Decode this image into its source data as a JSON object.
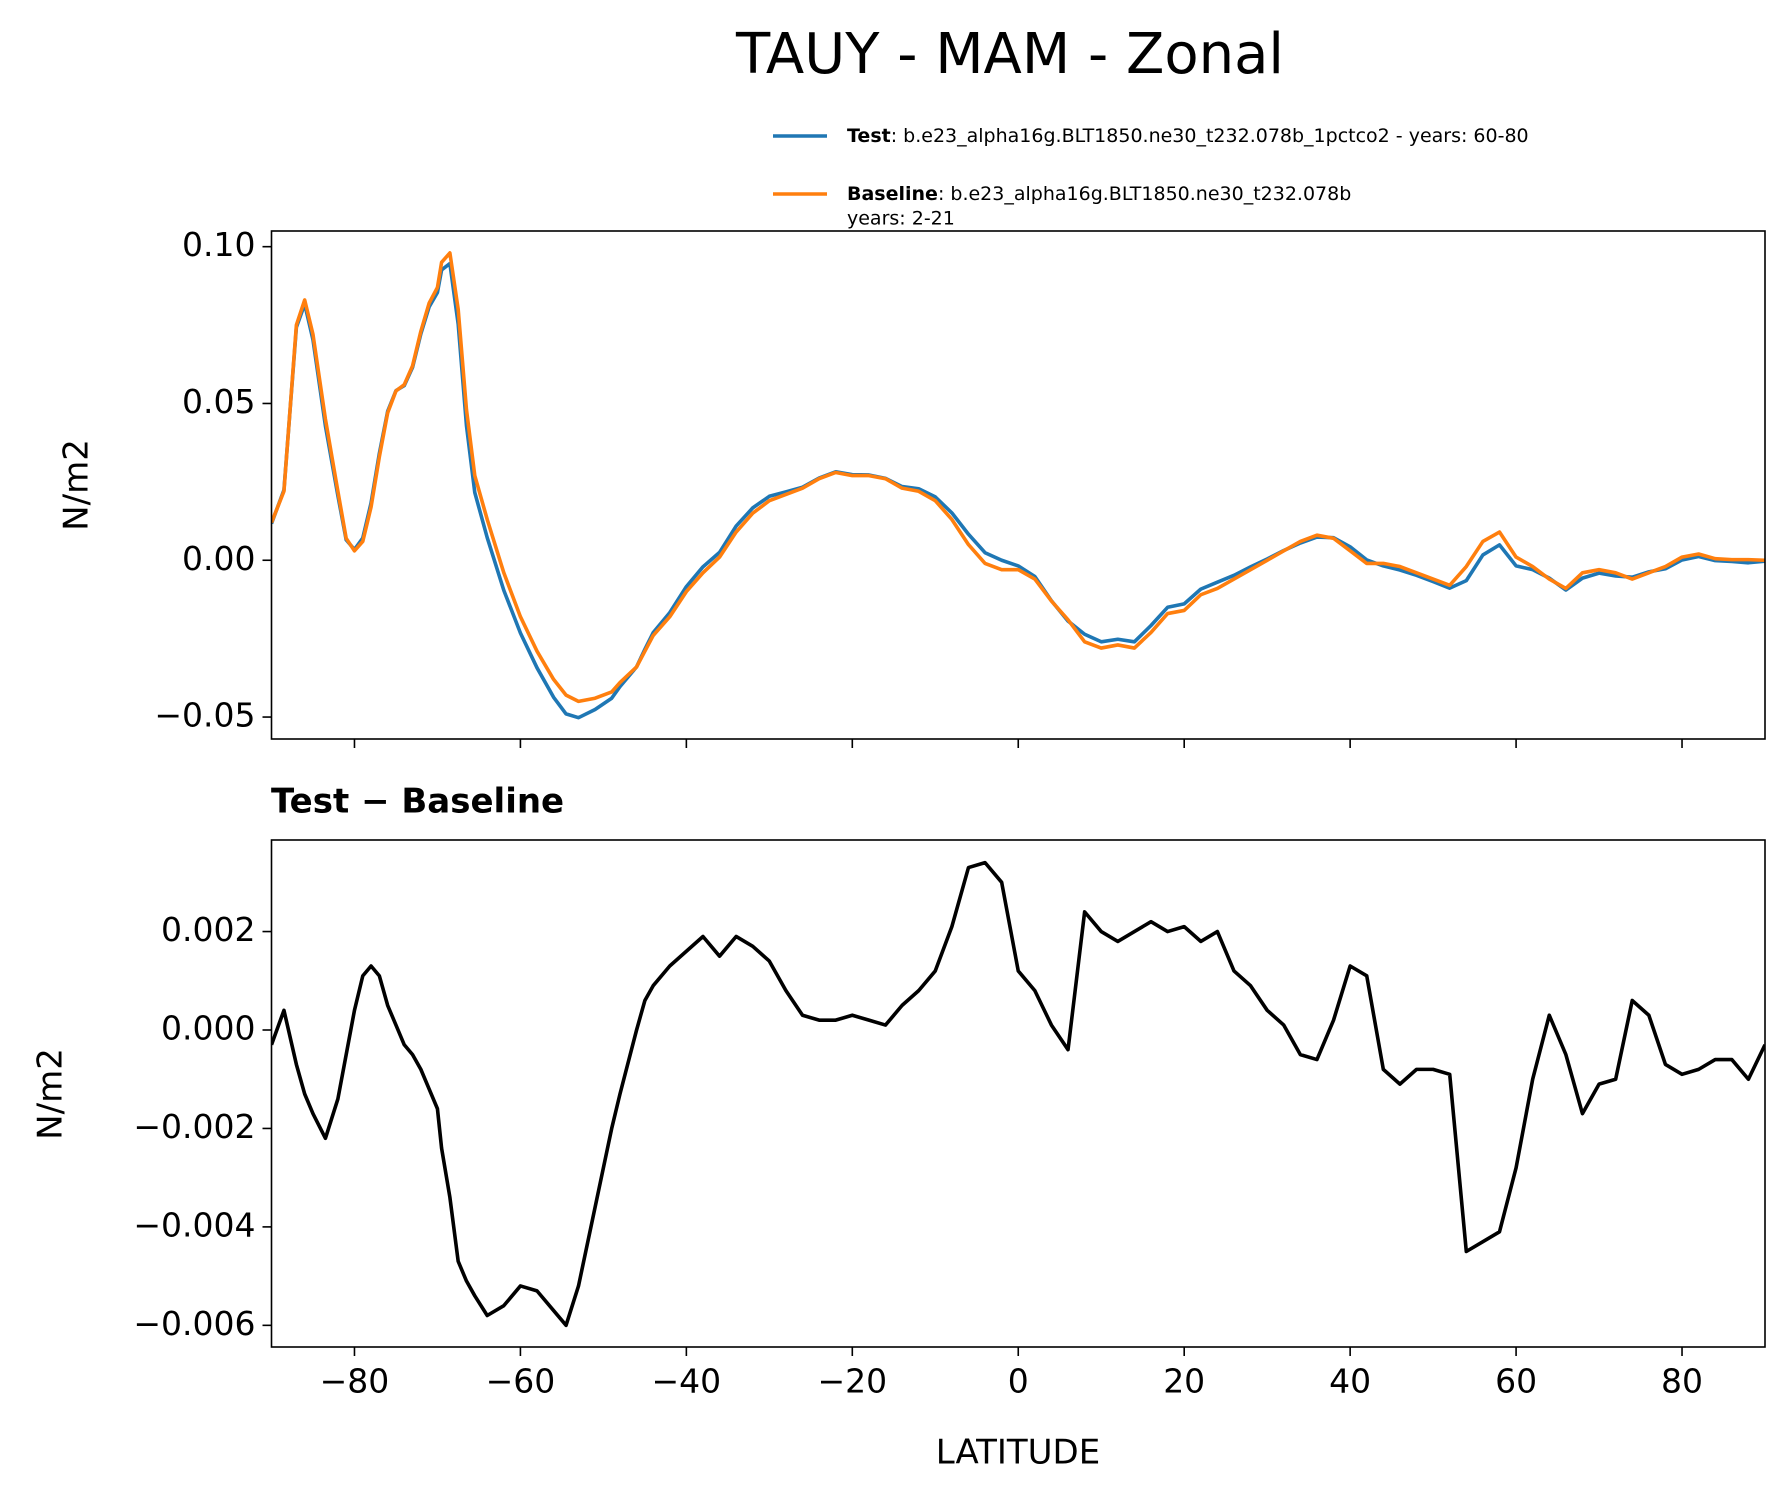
{
  "chart_data": [
    {
      "type": "line",
      "title": "TAUY - MAM - Zonal",
      "ylabel": "N/m2",
      "x": [
        -90,
        -88.5,
        -87,
        -86,
        -85,
        -83.5,
        -82,
        -81,
        -80,
        -79,
        -78,
        -77,
        -76,
        -75,
        -74,
        -73,
        -72,
        -71,
        -70,
        -69.5,
        -68.5,
        -67.5,
        -66.5,
        -65.5,
        -64,
        -62,
        -60,
        -58,
        -56,
        -54.5,
        -53,
        -51,
        -49,
        -48,
        -46,
        -45,
        -44,
        -42,
        -40,
        -38,
        -36,
        -34,
        -32,
        -30,
        -28,
        -26,
        -24,
        -22,
        -20,
        -18,
        -16,
        -14,
        -12,
        -10,
        -8,
        -6,
        -4,
        -2,
        0,
        2,
        4,
        6,
        8,
        10,
        12,
        14,
        16,
        18,
        20,
        22,
        24,
        26,
        28,
        30,
        32,
        34,
        36,
        38,
        40,
        42,
        44,
        46,
        48,
        50,
        52,
        54,
        56,
        58,
        60,
        62,
        64,
        66,
        68,
        70,
        72,
        74,
        76,
        78,
        80,
        82,
        84,
        86,
        88,
        90
      ],
      "series": [
        {
          "name": "Test",
          "description": [
            ": b.e23_alpha16g.BLT1850.ne30_t232.078b_1pctco2 - years: 60-80"
          ],
          "color": "#1f77b4",
          "values": [
            0.0117,
            0.0224,
            0.0743,
            0.0817,
            0.0703,
            0.0428,
            0.0206,
            0.0065,
            0.0034,
            0.0071,
            0.0183,
            0.0341,
            0.0475,
            0.0541,
            0.0557,
            0.0615,
            0.0722,
            0.0808,
            0.0854,
            0.0926,
            0.0946,
            0.0753,
            0.0429,
            0.0216,
            0.0072,
            -0.0096,
            -0.0232,
            -0.0343,
            -0.0437,
            -0.049,
            -0.0502,
            -0.0476,
            -0.044,
            -0.0403,
            -0.034,
            -0.0284,
            -0.0231,
            -0.0167,
            -0.0084,
            -0.0021,
            0.0025,
            0.0109,
            0.0167,
            0.0204,
            0.0218,
            0.0233,
            0.0262,
            0.0282,
            0.0273,
            0.0272,
            0.0261,
            0.0235,
            0.0228,
            0.0202,
            0.0151,
            0.0083,
            0.0024,
            0.0,
            -0.0018,
            -0.0052,
            -0.0129,
            -0.0194,
            -0.0236,
            -0.026,
            -0.0252,
            -0.026,
            -0.0208,
            -0.015,
            -0.0139,
            -0.0092,
            -0.007,
            -0.0048,
            -0.0021,
            0.0004,
            0.0031,
            0.0055,
            0.0074,
            0.0072,
            0.0043,
            0.0001,
            -0.0018,
            -0.0031,
            -0.0048,
            -0.0068,
            -0.0089,
            -0.0065,
            0.0017,
            0.0049,
            -0.0018,
            -0.003,
            -0.0057,
            -0.0095,
            -0.0057,
            -0.0041,
            -0.005,
            -0.0054,
            -0.0037,
            -0.0027,
            0.0001,
            0.0012,
            -0.0001,
            -0.0004,
            -0.0008,
            -0.0003
          ]
        },
        {
          "name": "Baseline",
          "description": [
            ": b.e23_alpha16g.BLT1850.ne30_t232.078b",
            "years: 2-21"
          ],
          "color": "#ff7f0e",
          "values": [
            0.012,
            0.022,
            0.075,
            0.083,
            0.072,
            0.045,
            0.022,
            0.007,
            0.003,
            0.006,
            0.017,
            0.033,
            0.047,
            0.054,
            0.056,
            0.062,
            0.073,
            0.082,
            0.087,
            0.095,
            0.098,
            0.08,
            0.048,
            0.027,
            0.013,
            -0.004,
            -0.018,
            -0.029,
            -0.038,
            -0.043,
            -0.045,
            -0.044,
            -0.042,
            -0.039,
            -0.034,
            -0.029,
            -0.024,
            -0.018,
            -0.01,
            -0.004,
            0.001,
            0.009,
            0.015,
            0.019,
            0.021,
            0.023,
            0.026,
            0.028,
            0.027,
            0.027,
            0.026,
            0.023,
            0.022,
            0.019,
            0.013,
            0.005,
            -0.001,
            -0.003,
            -0.003,
            -0.006,
            -0.013,
            -0.019,
            -0.026,
            -0.028,
            -0.027,
            -0.028,
            -0.023,
            -0.017,
            -0.016,
            -0.011,
            -0.009,
            -0.006,
            -0.003,
            0.0,
            0.003,
            0.006,
            0.008,
            0.007,
            0.003,
            -0.001,
            -0.001,
            -0.002,
            -0.004,
            -0.006,
            -0.008,
            -0.002,
            0.006,
            0.009,
            0.001,
            -0.002,
            -0.006,
            -0.009,
            -0.004,
            -0.003,
            -0.004,
            -0.006,
            -0.004,
            -0.002,
            0.001,
            0.002,
            0.0005,
            0.0002,
            0.0002,
            0.0
          ]
        }
      ],
      "xlim": [
        -90,
        90
      ],
      "xticks": [
        -80,
        -60,
        -40,
        -20,
        0,
        20,
        40,
        60,
        80
      ],
      "ylim": [
        -0.057,
        0.105
      ],
      "yticks": [
        {
          "value": -0.05,
          "label": "−0.05"
        },
        {
          "value": 0.0,
          "label": "0.00"
        },
        0.05,
        {
          "value": 0.1,
          "label": "0.10"
        }
      ]
    },
    {
      "type": "line",
      "title": "Test − Baseline",
      "xlabel": "LATITUDE",
      "ylabel": "N/m2",
      "x": [
        -90,
        -88.5,
        -87,
        -86,
        -85,
        -83.5,
        -82,
        -81,
        -80,
        -79,
        -78,
        -77,
        -76,
        -75,
        -74,
        -73,
        -72,
        -71,
        -70,
        -69.5,
        -68.5,
        -67.5,
        -66.5,
        -65.5,
        -64,
        -62,
        -60,
        -58,
        -56,
        -54.5,
        -53,
        -51,
        -49,
        -48,
        -46,
        -45,
        -44,
        -42,
        -40,
        -38,
        -36,
        -34,
        -32,
        -30,
        -28,
        -26,
        -24,
        -22,
        -20,
        -18,
        -16,
        -14,
        -12,
        -10,
        -8,
        -6,
        -4,
        -2,
        0,
        2,
        4,
        6,
        8,
        10,
        12,
        14,
        16,
        18,
        20,
        22,
        24,
        26,
        28,
        30,
        32,
        34,
        36,
        38,
        40,
        42,
        44,
        46,
        48,
        50,
        52,
        54,
        56,
        58,
        60,
        62,
        64,
        66,
        68,
        70,
        72,
        74,
        76,
        78,
        80,
        82,
        84,
        86,
        88,
        90
      ],
      "series": [
        {
          "color": "#000000",
          "values": [
            -0.0003,
            0.0004,
            -0.0007,
            -0.0013,
            -0.0017,
            -0.0022,
            -0.0014,
            -0.0005,
            0.0004,
            0.0011,
            0.0013,
            0.0011,
            0.0005,
            0.0001,
            -0.0003,
            -0.0005,
            -0.0008,
            -0.0012,
            -0.0016,
            -0.0024,
            -0.0034,
            -0.0047,
            -0.0051,
            -0.0054,
            -0.0058,
            -0.0056,
            -0.0052,
            -0.0053,
            -0.0057,
            -0.006,
            -0.0052,
            -0.0036,
            -0.002,
            -0.0013,
            0.0,
            0.0006,
            0.0009,
            0.0013,
            0.0016,
            0.0019,
            0.0015,
            0.0019,
            0.0017,
            0.0014,
            0.0008,
            0.0003,
            0.0002,
            0.0002,
            0.0003,
            0.0002,
            0.0001,
            0.0005,
            0.0008,
            0.0012,
            0.0021,
            0.0033,
            0.0034,
            0.003,
            0.0012,
            0.0008,
            0.0001,
            -0.0004,
            0.0024,
            0.002,
            0.0018,
            0.002,
            0.0022,
            0.002,
            0.0021,
            0.0018,
            0.002,
            0.0012,
            0.0009,
            0.0004,
            0.0001,
            -0.0005,
            -0.0006,
            0.0002,
            0.0013,
            0.0011,
            -0.0008,
            -0.0011,
            -0.0008,
            -0.0008,
            -0.0009,
            -0.0045,
            -0.0043,
            -0.0041,
            -0.0028,
            -0.001,
            0.0003,
            -0.0005,
            -0.0017,
            -0.0011,
            -0.001,
            0.0006,
            0.0003,
            -0.0007,
            -0.0009,
            -0.0008,
            -0.0006,
            -0.0006,
            -0.001,
            -0.0003
          ]
        }
      ],
      "xlim": [
        -90,
        90
      ],
      "xticks": [
        {
          "value": -80,
          "label": "−80"
        },
        {
          "value": -60,
          "label": "−60"
        },
        {
          "value": -40,
          "label": "−40"
        },
        {
          "value": -20,
          "label": "−20"
        },
        0,
        20,
        40,
        60,
        80
      ],
      "ylim": [
        -0.00644,
        0.00386
      ],
      "yticks": [
        {
          "value": -0.006,
          "label": "−0.006"
        },
        {
          "value": -0.004,
          "label": "−0.004"
        },
        {
          "value": -0.002,
          "label": "−0.002"
        },
        {
          "value": 0.0,
          "label": "0.000"
        },
        0.002
      ]
    }
  ]
}
